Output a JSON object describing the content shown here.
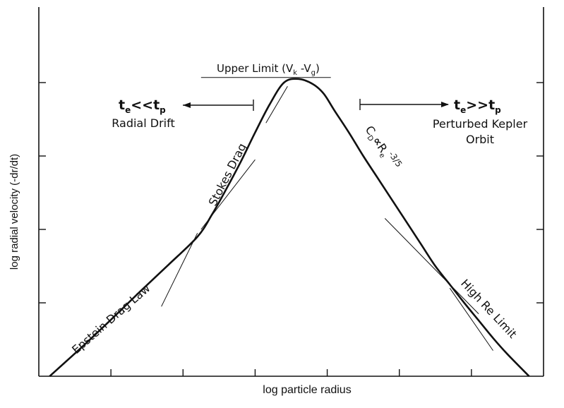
{
  "chart_data": {
    "type": "line",
    "title": "",
    "xlabel": "log particle radius",
    "ylabel": "log radial velocity (-dr/dt)",
    "xlim": [
      0,
      7
    ],
    "ylim": [
      0,
      4
    ],
    "x_ticks": [
      1,
      2,
      3,
      4,
      5,
      6
    ],
    "y_ticks": [
      1,
      2,
      3,
      4
    ],
    "tick_labels_shown": false,
    "grid": false,
    "series": [
      {
        "name": "",
        "x": [
          0.15,
          0.6,
          1.0,
          1.4,
          1.8,
          2.2,
          2.4,
          2.6,
          2.8,
          3.0,
          3.2,
          3.4,
          3.6,
          3.8,
          3.95,
          4.1,
          4.3,
          4.5,
          4.7,
          4.9,
          5.1,
          5.3,
          5.5,
          5.7,
          5.9,
          6.1,
          6.3,
          6.5,
          6.8
        ],
        "y": [
          0.0,
          0.4,
          0.77,
          1.15,
          1.52,
          1.9,
          2.2,
          2.55,
          2.92,
          3.32,
          3.7,
          4.0,
          4.05,
          3.98,
          3.85,
          3.62,
          3.32,
          3.0,
          2.7,
          2.4,
          2.1,
          1.8,
          1.5,
          1.25,
          1.0,
          0.76,
          0.52,
          0.3,
          0.0
        ]
      }
    ],
    "guide_lines": [
      {
        "x": [
          1.7,
          2.2
        ],
        "y": [
          0.95,
          1.95
        ]
      },
      {
        "x": [
          2.25,
          3.0
        ],
        "y": [
          2.0,
          2.95
        ]
      },
      {
        "x": [
          3.15,
          3.45
        ],
        "y": [
          3.45,
          3.95
        ]
      },
      {
        "x": [
          4.8,
          6.1
        ],
        "y": [
          2.15,
          0.85
        ]
      },
      {
        "x": [
          5.7,
          6.3
        ],
        "y": [
          1.2,
          0.35
        ]
      }
    ],
    "upper_limit_line": {
      "x": [
        2.25,
        4.05
      ],
      "y": [
        4.07,
        4.07
      ]
    },
    "annotations": {
      "upper_limit": {
        "text": "Upper Limit (V",
        "sub1": "k",
        "mid": " -V",
        "sub2": "g",
        "end": ")"
      },
      "left_regime": {
        "t1": "t",
        "s1": "e",
        "op": "<<",
        "t2": "t",
        "s2": "p",
        "caption": "Radial Drift"
      },
      "right_regime": {
        "t1": "t",
        "s1": "e",
        "op": ">>",
        "t2": "t",
        "s2": "p",
        "caption1": "Perturbed Kepler",
        "caption2": "Orbit"
      },
      "epstein": "Epstein Drag Law",
      "stokes": "Stokes Drag",
      "drag_coef": {
        "c": "C",
        "csub": "D",
        "prop": "∝",
        "re": "R",
        "resub": "e",
        "exp": "-3/5"
      },
      "high_re": "High Re Limit"
    }
  }
}
